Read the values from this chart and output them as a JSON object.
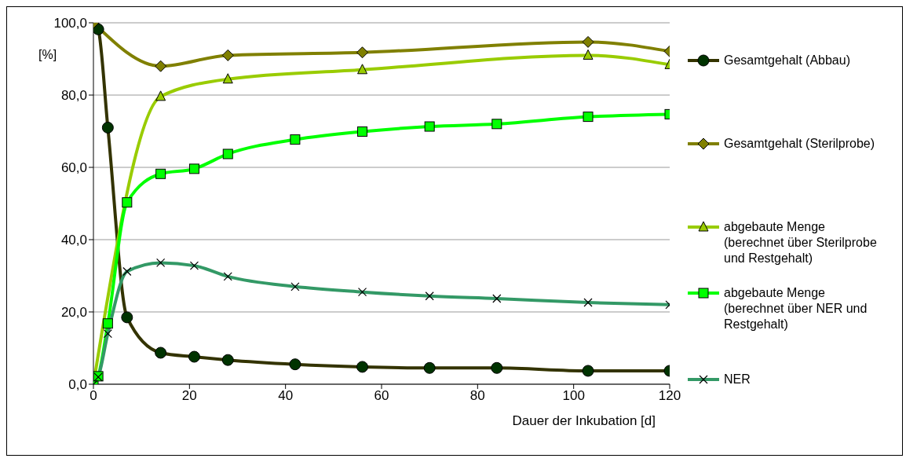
{
  "chart_data": {
    "type": "line",
    "xlabel": "Dauer der Inkubation [d]",
    "ylabel": "[%]",
    "xlim": [
      0,
      120
    ],
    "xticks": [
      0,
      20,
      40,
      60,
      80,
      100,
      120
    ],
    "ylim": [
      0,
      100
    ],
    "yticks": [
      {
        "value": 0,
        "label": "0,0"
      },
      {
        "value": 20,
        "label": "20,0"
      },
      {
        "value": 40,
        "label": "40,0"
      },
      {
        "value": 60,
        "label": "60,0"
      },
      {
        "value": 80,
        "label": "80,0"
      },
      {
        "value": 100,
        "label": "100,0"
      }
    ],
    "grid": "y",
    "legend": "right",
    "line_style": "solid",
    "series": [
      {
        "name": "Gesamtgehalt (Abbau)",
        "color": "#333300",
        "marker": "circle",
        "x": [
          0,
          1,
          3,
          7,
          14,
          21,
          28,
          42,
          56,
          70,
          84,
          103,
          120
        ],
        "values": [
          100,
          98.2,
          71,
          18.5,
          8.7,
          7.6,
          6.7,
          5.5,
          4.8,
          4.5,
          4.5,
          3.7,
          3.7
        ]
      },
      {
        "name": "Gesamtgehalt (Sterilprobe)",
        "color": "#808000",
        "marker": "diamond",
        "x": [
          0,
          14,
          28,
          56,
          103,
          120
        ],
        "values": [
          100,
          88,
          91,
          91.8,
          94.7,
          92.1
        ]
      },
      {
        "name": "abgebaute Menge (berechnet über Sterilprobe und Restgehalt)",
        "color": "#99cc00",
        "marker": "triangle",
        "x": [
          0,
          14,
          28,
          56,
          103,
          120
        ],
        "values": [
          0,
          79.6,
          84.4,
          87,
          91,
          88.4
        ]
      },
      {
        "name": "abgebaute Menge (berechnet über NER und Restgehalt)",
        "color": "#00ff00",
        "marker": "square",
        "x": [
          0,
          1,
          3,
          7,
          14,
          21,
          28,
          42,
          56,
          70,
          84,
          103,
          120
        ],
        "values": [
          0,
          2.2,
          16.8,
          50.3,
          58.2,
          59.6,
          63.7,
          67.7,
          69.9,
          71.3,
          72,
          74,
          74.7
        ]
      },
      {
        "name": "NER",
        "color": "#339966",
        "marker": "cross",
        "x": [
          0,
          1,
          3,
          7,
          14,
          21,
          28,
          42,
          56,
          70,
          84,
          103,
          120
        ],
        "values": [
          0,
          2,
          14,
          31.2,
          33.6,
          32.8,
          29.8,
          27,
          25.5,
          24.4,
          23.7,
          22.6,
          22
        ]
      }
    ]
  }
}
